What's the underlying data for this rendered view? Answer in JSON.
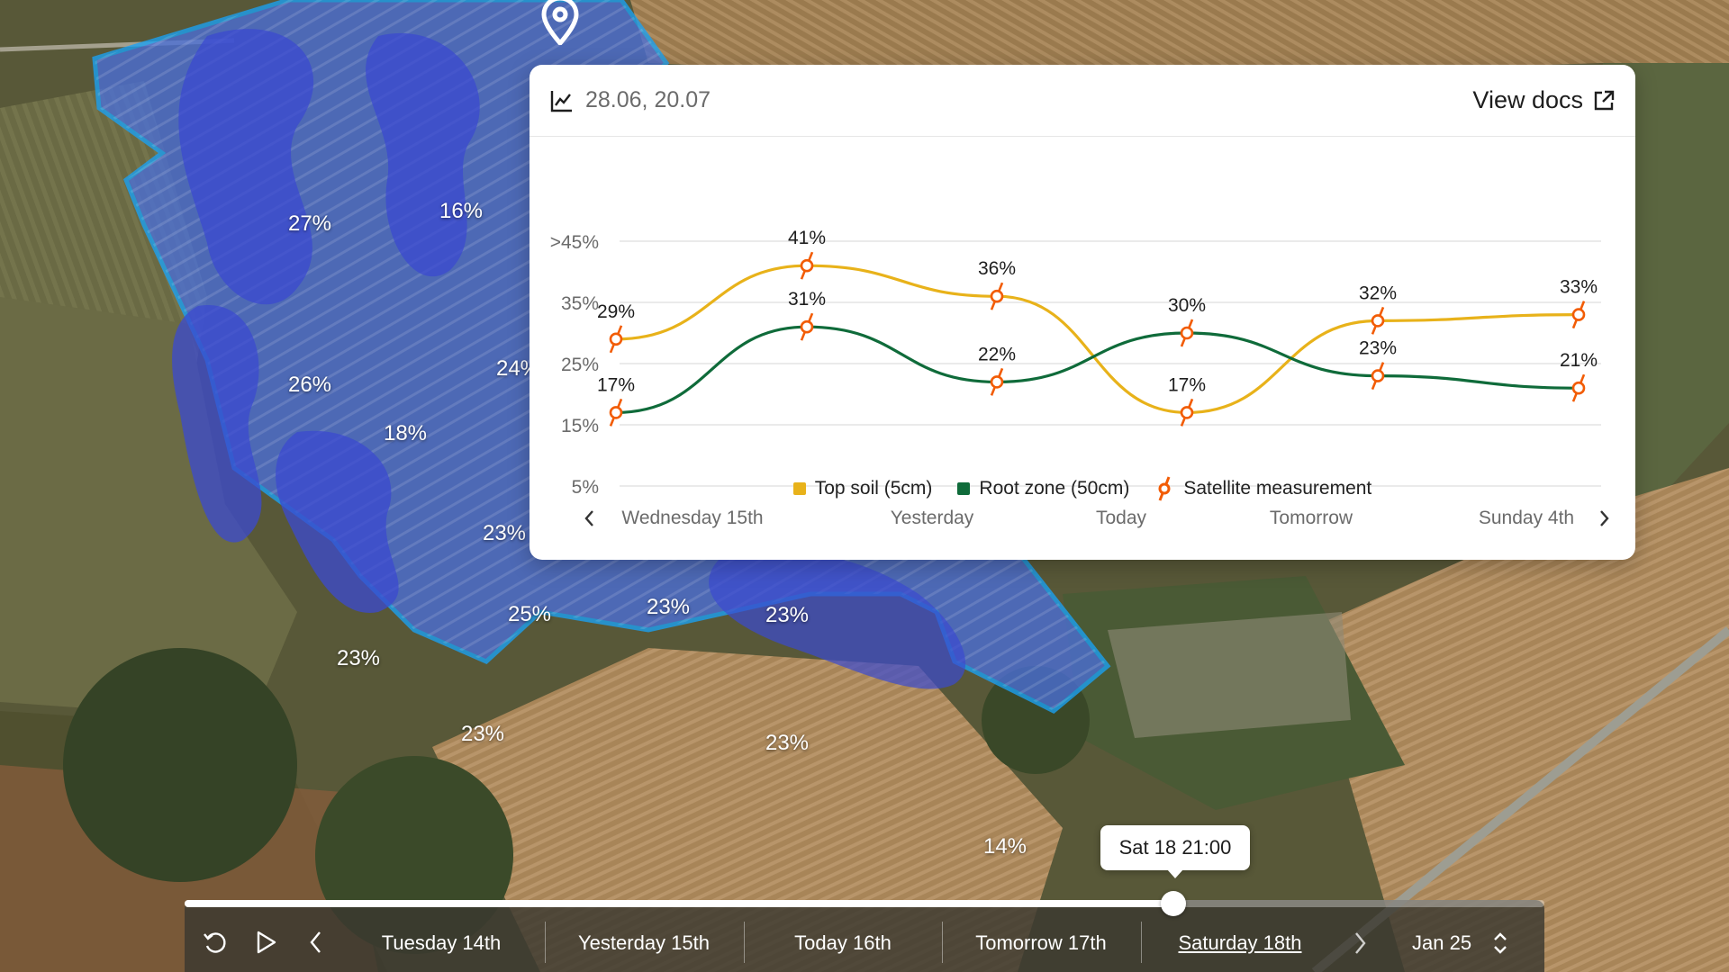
{
  "map": {
    "labels": [
      "27%",
      "16%",
      "26%",
      "18%",
      "24%",
      "23%",
      "25%",
      "23%",
      "23%",
      "23%",
      "23%",
      "23%",
      "14%"
    ]
  },
  "panel": {
    "dates": "28.06, 20.07",
    "view_docs_label": "View docs",
    "icons": {
      "chart": "line-chart-icon",
      "external": "external-link-icon"
    }
  },
  "chart_data": {
    "type": "line",
    "x": [
      "Wednesday 15th",
      "",
      "Yesterday",
      "",
      "Today",
      "",
      "Tomorrow",
      "",
      "Sunday 4th"
    ],
    "x_ticks": [
      "Wednesday 15th",
      "Yesterday",
      "Today",
      "Tomorrow",
      "Sunday 4th"
    ],
    "y_ticks": [
      ">45%",
      "35%",
      "25%",
      "15%",
      "5%"
    ],
    "ylim": [
      5,
      45
    ],
    "grid": true,
    "series": [
      {
        "name": "Top soil (5cm)",
        "color": "#e8b21a",
        "points": [
          [
            0,
            29
          ],
          [
            1,
            41
          ],
          [
            2,
            36
          ],
          [
            3,
            17
          ],
          [
            4,
            32
          ],
          [
            5,
            33
          ]
        ],
        "labels": [
          "29%",
          "41%",
          "36%",
          "17%",
          "32%",
          "33%"
        ]
      },
      {
        "name": "Root zone (50cm)",
        "color": "#0f6b3a",
        "points": [
          [
            0,
            17
          ],
          [
            1,
            31
          ],
          [
            2,
            22
          ],
          [
            3,
            30
          ],
          [
            4,
            23
          ],
          [
            5,
            21
          ]
        ],
        "labels": [
          "17%",
          "31%",
          "22%",
          "30%",
          "23%",
          "21%"
        ]
      }
    ],
    "markers_name": "Satellite measurement",
    "markers_color": "#f25c05"
  },
  "legend": {
    "items": [
      {
        "label": "Top soil (5cm)",
        "color": "#e8b21a"
      },
      {
        "label": "Root zone (50cm)",
        "color": "#0f6b3a"
      },
      {
        "label": "Satellite measurement",
        "color": "#f25c05"
      }
    ]
  },
  "timeline": {
    "tooltip": "Sat 18 21:00",
    "days": [
      "Tuesday 14th",
      "Yesterday 15th",
      "Today 16th",
      "Tomorrow 17th",
      "Saturday 18th"
    ],
    "active_index": 4,
    "progress": 0.727,
    "month_label": "Jan 25"
  }
}
